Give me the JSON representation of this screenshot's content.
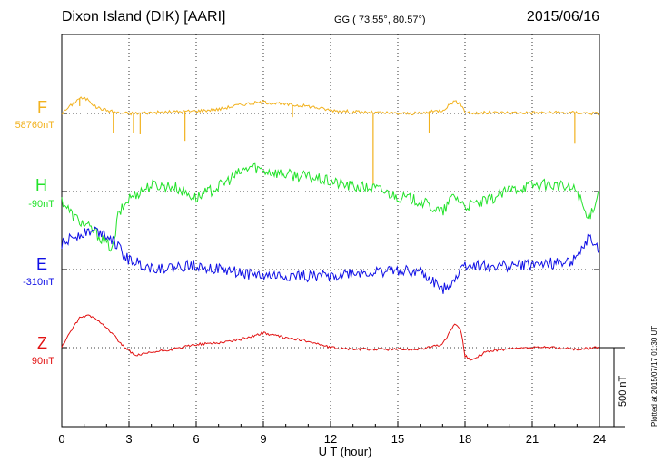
{
  "header": {
    "station": "Dixon Island (DIK)  [AARI]",
    "coordinates": "GG ( 73.55°,  80.57°)",
    "date": "2015/06/16"
  },
  "footer": {
    "xlabel": "U T (hour)",
    "scale_label": "500 nT",
    "plotted": "Plotted at 2015/07/17 01:30 UT"
  },
  "chart_data": {
    "type": "line",
    "title": "Dixon Island (DIK)  [AARI]",
    "xlabel": "U T (hour)",
    "ylabel": "",
    "xlim": [
      0,
      24
    ],
    "x_ticks": [
      "0",
      "3",
      "6",
      "9",
      "12",
      "15",
      "18",
      "21",
      "24"
    ],
    "grid": true,
    "scale_bar": "500 nT",
    "series": [
      {
        "name": "F",
        "baseline_label": "58760nT",
        "color": "#f2b21e",
        "x": [
          0,
          0.5,
          0.8,
          1.2,
          1.5,
          2,
          2.5,
          3,
          4,
          5,
          6,
          7,
          8,
          9,
          10,
          11,
          12,
          13,
          14,
          15,
          16,
          17,
          17.5,
          17.8,
          18,
          18.5,
          19,
          20,
          21,
          22,
          23,
          24
        ],
        "values": [
          0,
          60,
          95,
          85,
          40,
          20,
          5,
          0,
          5,
          10,
          15,
          25,
          55,
          70,
          55,
          45,
          20,
          10,
          5,
          0,
          0,
          20,
          75,
          60,
          10,
          0,
          5,
          5,
          5,
          5,
          5,
          0
        ],
        "spikes": [
          [
            0.8,
            -50
          ],
          [
            2.3,
            -130
          ],
          [
            3.2,
            -120
          ],
          [
            3.5,
            -130
          ],
          [
            5.5,
            -180
          ],
          [
            10.3,
            -75
          ],
          [
            13.9,
            -440
          ],
          [
            16.4,
            -125
          ],
          [
            22.9,
            -190
          ]
        ]
      },
      {
        "name": "H",
        "baseline_label": "-90nT",
        "color": "#22e22a",
        "x": [
          0,
          0.5,
          1,
          1.5,
          2,
          2.3,
          2.5,
          3,
          4,
          5,
          6,
          7,
          8,
          8.5,
          9,
          10,
          11,
          12,
          13,
          14,
          15,
          16,
          17,
          17.5,
          18,
          19,
          20,
          21,
          22,
          23,
          23.5,
          24
        ],
        "values": [
          -50,
          -150,
          -200,
          -250,
          -320,
          -350,
          -150,
          -40,
          40,
          30,
          -40,
          30,
          120,
          155,
          130,
          105,
          90,
          60,
          30,
          20,
          -30,
          -60,
          -130,
          -20,
          -90,
          -60,
          10,
          40,
          40,
          10,
          -180,
          10
        ]
      },
      {
        "name": "E",
        "baseline_label": "-310nT",
        "color": "#1010e6",
        "x": [
          0,
          0.5,
          1,
          1.5,
          2,
          2.3,
          2.7,
          3,
          4,
          5,
          6,
          7,
          8,
          9,
          10,
          11,
          12,
          13,
          14,
          15,
          16,
          17,
          17.5,
          18,
          19,
          20,
          21,
          22,
          23,
          23.5,
          24
        ],
        "values": [
          150,
          200,
          230,
          240,
          220,
          180,
          100,
          60,
          10,
          10,
          30,
          0,
          -20,
          -40,
          -40,
          -40,
          -40,
          -20,
          -20,
          0,
          -20,
          -120,
          -60,
          30,
          20,
          20,
          30,
          40,
          60,
          190,
          120
        ]
      },
      {
        "name": "Z",
        "baseline_label": "90nT",
        "color": "#e21212",
        "x": [
          0,
          0.3,
          0.8,
          1.2,
          1.8,
          2.3,
          2.8,
          3.3,
          4,
          5,
          6,
          7,
          8,
          9,
          10,
          11,
          12,
          13,
          14,
          15,
          16,
          17,
          17.5,
          17.8,
          18,
          18.3,
          19,
          20,
          21,
          22,
          23,
          24
        ],
        "values": [
          0,
          80,
          180,
          200,
          150,
          80,
          0,
          -50,
          -30,
          -10,
          20,
          30,
          50,
          90,
          60,
          40,
          0,
          -10,
          -10,
          -10,
          -10,
          20,
          140,
          120,
          -50,
          -80,
          -20,
          -10,
          0,
          0,
          -10,
          0
        ]
      }
    ]
  }
}
